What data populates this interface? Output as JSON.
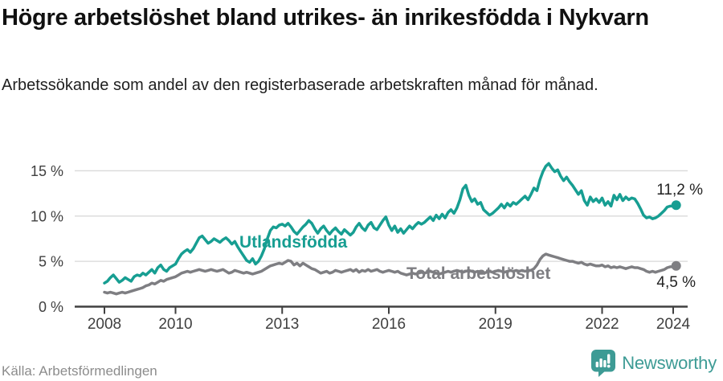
{
  "header": {
    "title": "Högre arbetslöshet bland utrikes- än inrikesfödda i Nykvarn",
    "subtitle": "Arbetssökande som andel av den registerbaserade arbetskraften månad för månad."
  },
  "footer": {
    "source": "Källa: Arbetsförmedlingen",
    "brand": "Newsworthy"
  },
  "colors": {
    "foreign_born_line": "#179e92",
    "total_line": "#7e7e82",
    "axis": "#404040",
    "grid": "#d9d9d9",
    "end_label_text": "#222222",
    "brand_teal": "#3d9b95"
  },
  "chart_data": {
    "type": "line",
    "title": "Högre arbetslöshet bland utrikes- än inrikesfödda i Nykvarn",
    "subtitle": "Arbetssökande som andel av den registerbaserade arbetskraften månad för månad.",
    "xlabel": "",
    "ylabel": "",
    "x_start_year": 2008,
    "x_step_months": 1,
    "x_ticks": [
      2008,
      2010,
      2013,
      2016,
      2019,
      2022,
      2024
    ],
    "y_ticks": [
      0,
      5,
      10,
      15
    ],
    "y_tick_suffix": " %",
    "ylim": [
      0,
      16.5
    ],
    "grid": "horizontal",
    "legend_position": "inline-labels",
    "series": [
      {
        "name": "Utlandsfödda",
        "color": "#179e92",
        "end_label": "11,2 %",
        "values": [
          2.6,
          2.8,
          3.2,
          3.5,
          3.1,
          2.7,
          2.9,
          3.2,
          3.0,
          2.8,
          3.3,
          3.5,
          3.4,
          3.7,
          3.5,
          3.8,
          4.1,
          3.7,
          4.3,
          4.6,
          4.1,
          3.9,
          4.3,
          4.5,
          4.7,
          5.3,
          5.8,
          6.1,
          6.3,
          6.0,
          6.4,
          7.0,
          7.6,
          7.8,
          7.4,
          7.0,
          7.2,
          7.5,
          7.3,
          7.1,
          7.4,
          7.6,
          7.3,
          6.9,
          7.2,
          6.6,
          6.1,
          5.6,
          5.1,
          4.9,
          5.3,
          4.7,
          5.0,
          5.6,
          6.4,
          7.5,
          8.4,
          8.8,
          8.7,
          9.0,
          9.1,
          8.9,
          9.2,
          8.8,
          8.3,
          8.0,
          8.4,
          8.8,
          9.1,
          9.5,
          9.2,
          8.6,
          8.1,
          8.6,
          8.9,
          8.4,
          8.0,
          8.4,
          8.7,
          8.3,
          8.0,
          8.5,
          8.2,
          7.9,
          8.2,
          8.8,
          9.2,
          8.7,
          8.4,
          9.0,
          9.3,
          8.7,
          8.5,
          9.0,
          9.5,
          9.9,
          9.0,
          8.4,
          8.9,
          8.2,
          8.6,
          8.1,
          8.5,
          8.9,
          8.6,
          9.0,
          9.3,
          9.1,
          9.3,
          9.6,
          9.9,
          9.5,
          10.1,
          9.7,
          10.2,
          9.8,
          10.4,
          10.7,
          10.3,
          10.9,
          11.8,
          13.0,
          13.4,
          12.3,
          11.6,
          11.9,
          11.3,
          11.5,
          10.7,
          10.4,
          10.1,
          10.3,
          10.6,
          10.9,
          11.3,
          10.9,
          11.4,
          11.1,
          11.5,
          11.3,
          11.6,
          11.9,
          12.2,
          11.8,
          12.4,
          13.1,
          12.8,
          14.0,
          14.9,
          15.5,
          15.8,
          15.3,
          14.9,
          15.1,
          14.4,
          13.9,
          14.3,
          13.8,
          13.4,
          12.9,
          12.4,
          12.8,
          11.7,
          11.2,
          12.1,
          11.6,
          11.9,
          11.5,
          12.0,
          11.2,
          11.6,
          11.1,
          12.3,
          11.8,
          12.4,
          11.7,
          12.1,
          11.8,
          12.0,
          11.9,
          11.4,
          10.8,
          10.1,
          9.8,
          9.9,
          9.7,
          9.8,
          10.0,
          10.3,
          10.6,
          11.0,
          11.1,
          11.1,
          11.2
        ]
      },
      {
        "name": "Total arbetslöshet",
        "color": "#7e7e82",
        "end_label": "4,5 %",
        "values": [
          1.6,
          1.5,
          1.6,
          1.5,
          1.4,
          1.5,
          1.6,
          1.5,
          1.6,
          1.7,
          1.8,
          1.9,
          2.0,
          2.1,
          2.3,
          2.4,
          2.6,
          2.5,
          2.7,
          2.9,
          2.8,
          3.0,
          3.1,
          3.2,
          3.3,
          3.5,
          3.7,
          3.8,
          3.9,
          3.8,
          3.9,
          4.0,
          4.1,
          4.0,
          3.9,
          4.0,
          4.1,
          4.0,
          3.9,
          4.0,
          4.1,
          3.9,
          3.7,
          3.8,
          4.0,
          3.9,
          3.8,
          3.7,
          3.8,
          3.7,
          3.6,
          3.7,
          3.8,
          3.9,
          4.1,
          4.3,
          4.5,
          4.6,
          4.7,
          4.8,
          4.7,
          4.9,
          5.1,
          5.0,
          4.6,
          4.8,
          4.5,
          4.8,
          4.6,
          4.4,
          4.2,
          4.1,
          3.9,
          3.7,
          3.8,
          3.9,
          3.7,
          3.8,
          4.0,
          3.9,
          3.8,
          3.9,
          4.0,
          4.1,
          3.9,
          4.1,
          3.8,
          4.0,
          3.9,
          4.1,
          3.9,
          4.0,
          4.1,
          3.9,
          3.8,
          3.9,
          4.0,
          3.9,
          3.8,
          3.9,
          3.7,
          3.6,
          3.5,
          3.6,
          3.7,
          3.6,
          3.7,
          3.8,
          3.7,
          3.8,
          3.9,
          3.8,
          3.7,
          3.6,
          3.7,
          3.8,
          3.9,
          3.8,
          3.9,
          4.0,
          3.9,
          3.8,
          3.9,
          4.0,
          3.9,
          3.8,
          3.9,
          3.8,
          3.7,
          3.8,
          3.9,
          3.8,
          3.9,
          4.0,
          3.9,
          3.8,
          3.9,
          4.0,
          3.9,
          4.0,
          3.9,
          4.0,
          3.9,
          4.0,
          4.0,
          4.2,
          4.6,
          5.2,
          5.6,
          5.8,
          5.7,
          5.6,
          5.5,
          5.4,
          5.3,
          5.2,
          5.1,
          5.0,
          5.0,
          4.9,
          4.8,
          4.9,
          4.7,
          4.6,
          4.7,
          4.6,
          4.5,
          4.5,
          4.6,
          4.4,
          4.5,
          4.3,
          4.4,
          4.3,
          4.4,
          4.3,
          4.2,
          4.3,
          4.4,
          4.3,
          4.3,
          4.2,
          4.1,
          3.9,
          3.8,
          3.9,
          3.8,
          3.9,
          4.0,
          4.1,
          4.3,
          4.4,
          4.4,
          4.5
        ]
      }
    ]
  }
}
